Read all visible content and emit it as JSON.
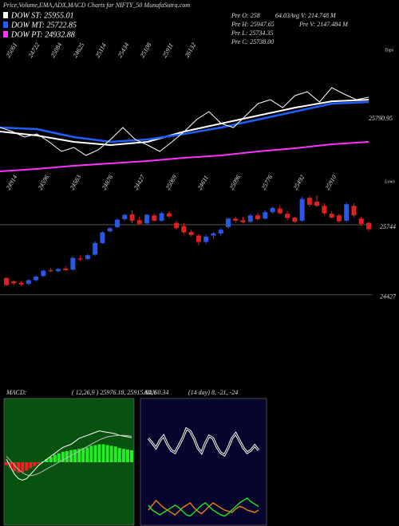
{
  "header": {
    "title": "Price,Volume,EMA,ADX,MACD Charts for NIFTY_50 MunafaSutra.com",
    "info": [
      "Pre O: 258",
      "Pre H: 25947.65",
      "Pre L: 25734.35",
      "Pre C: 25738.00",
      "64.03Avg V: 214.748 M",
      "Pre V: 2147.484 M"
    ]
  },
  "chart_data": [
    {
      "type": "line",
      "ylim": [
        23200,
        28900
      ],
      "color": "#ffffff",
      "values": [
        25479,
        25337,
        25137,
        25251,
        24966,
        24624,
        24767,
        24482,
        24681,
        25052,
        25479,
        25052,
        24852,
        24624,
        24966,
        25337,
        25764,
        26049,
        25622,
        25479,
        25907,
        26334,
        26476,
        26191,
        26619,
        26761,
        26391,
        26904,
        26676,
        26476,
        26562
      ],
      "series_x": [
        0,
        3,
        6,
        9,
        12,
        15,
        18,
        21,
        24,
        27,
        30
      ],
      "series": [
        {
          "name": "DOW ST: 25955.01",
          "color": "#ffffff",
          "values": [
            25337,
            25194,
            24966,
            24852,
            24966,
            25337,
            25622,
            25907,
            26191,
            26419,
            26476
          ]
        },
        {
          "name": "DOW MT: 25722.85",
          "color": "#1f5fff",
          "values": [
            25479,
            25422,
            25137,
            24966,
            25052,
            25251,
            25479,
            25764,
            26049,
            26334,
            26391
          ]
        },
        {
          "name": "DOW PT: 24932.88",
          "color": "#ff33ff",
          "values": [
            23912,
            23998,
            24112,
            24197,
            24283,
            24397,
            24482,
            24624,
            24738,
            24881,
            24966
          ]
        }
      ],
      "marker_value": 25790.95,
      "tops_label": "Tops",
      "lows_label": "Lows",
      "top_labels": [
        25061,
        24722,
        25084,
        24625,
        25114,
        25434,
        25108,
        25911,
        26132
      ],
      "low_labels": [
        24914,
        24596,
        24563,
        24876,
        24427,
        25069,
        24611,
        25096,
        25776,
        25492,
        25910
      ]
    },
    {
      "type": "candlestick",
      "ylim": [
        24394,
        26374
      ],
      "up_color": "#2a57e6",
      "down_color": "#e02020",
      "open": [
        24740,
        24680,
        24650,
        24630,
        24700,
        24780,
        24890,
        24870,
        24920,
        24900,
        25110,
        25100,
        25180,
        25400,
        25620,
        25700,
        25850,
        25940,
        25830,
        25770,
        25920,
        25820,
        25960,
        25780,
        25720,
        25610,
        25540,
        25420,
        25540,
        25580,
        25700,
        25860,
        25830,
        25800,
        25920,
        25860,
        25980,
        26050,
        25950,
        25880,
        25820,
        26250,
        26180,
        26100,
        25950,
        25920,
        25820,
        26100,
        25860,
        25780
      ],
      "high": [
        24760,
        24700,
        24690,
        24720,
        24790,
        24900,
        24930,
        24930,
        24960,
        25150,
        25160,
        25190,
        25430,
        25620,
        25700,
        25860,
        25950,
        26010,
        25900,
        25950,
        25960,
        25990,
        26000,
        25820,
        25780,
        25650,
        25570,
        25560,
        25610,
        25680,
        25880,
        25900,
        25890,
        25950,
        25970,
        26010,
        26090,
        26110,
        26000,
        25900,
        26270,
        26290,
        26300,
        26150,
        26000,
        25950,
        26160,
        26150,
        25900,
        25800
      ],
      "low": [
        24590,
        24600,
        24590,
        24610,
        24680,
        24760,
        24850,
        24850,
        24870,
        24880,
        25070,
        25080,
        25160,
        25380,
        25600,
        25680,
        25820,
        25780,
        25740,
        25750,
        25800,
        25800,
        25870,
        25650,
        25560,
        25520,
        25360,
        25380,
        25480,
        25540,
        25670,
        25780,
        25770,
        25780,
        25820,
        25840,
        25950,
        25940,
        25830,
        25780,
        25800,
        26080,
        26080,
        25920,
        25860,
        25780,
        25790,
        25880,
        25720,
        25620
      ],
      "close": [
        24610,
        24640,
        24620,
        24700,
        24770,
        24880,
        24870,
        24910,
        24890,
        25120,
        25090,
        25170,
        25400,
        25600,
        25680,
        25840,
        25930,
        25820,
        25760,
        25930,
        25820,
        25960,
        25900,
        25680,
        25600,
        25550,
        25420,
        25520,
        25580,
        25650,
        25860,
        25820,
        25790,
        25920,
        25850,
        25980,
        26060,
        25960,
        25870,
        25800,
        26230,
        26120,
        26100,
        25960,
        25880,
        25810,
        26130,
        25920,
        25760,
        25660
      ],
      "reference_lines": [
        25744,
        24427
      ]
    },
    {
      "type": "macd",
      "label": "MACD:",
      "params": "( 12,26,9 ) 25976.18, 25915.84, 60.34",
      "ylim": [
        -400,
        400
      ],
      "background": "#07520f",
      "pos_color": "#22ee22",
      "neg_color": "#ee2222",
      "histogram": [
        -20,
        -40,
        -60,
        -70,
        -65,
        -55,
        -40,
        -25,
        -10,
        5,
        20,
        35,
        50,
        60,
        70,
        75,
        80,
        85,
        90,
        95,
        100,
        110,
        115,
        120,
        120,
        115,
        110,
        105,
        95,
        90,
        85,
        80
      ],
      "lines": [
        {
          "color": "#ffffff",
          "values": [
            20,
            -30,
            -80,
            -110,
            -120,
            -110,
            -80,
            -50,
            -20,
            0,
            20,
            40,
            60,
            80,
            100,
            110,
            120,
            140,
            160,
            170,
            180,
            190,
            200,
            210,
            205,
            200,
            195,
            190,
            180,
            175,
            170,
            165
          ]
        },
        {
          "color": "#bbbbbb",
          "values": [
            40,
            10,
            -20,
            -50,
            -70,
            -85,
            -90,
            -85,
            -75,
            -60,
            -45,
            -30,
            -15,
            0,
            15,
            30,
            45,
            60,
            75,
            90,
            105,
            120,
            135,
            150,
            160,
            170,
            175,
            178,
            180,
            180,
            178,
            175
          ]
        }
      ]
    },
    {
      "type": "adx",
      "label": "ADX",
      "params": "(14 day) 8, -21, -24",
      "ylim": [
        0,
        100
      ],
      "background": "#05052e",
      "lines": [
        {
          "color": "#ffffff",
          "values": [
            70,
            66,
            62,
            68,
            72,
            65,
            60,
            58,
            64,
            70,
            78,
            76,
            70,
            62,
            58,
            66,
            72,
            70,
            63,
            58,
            56,
            62,
            70,
            74,
            68,
            62,
            58,
            60,
            64,
            60
          ]
        },
        {
          "color": "#e07a20",
          "values": [
            10,
            14,
            18,
            15,
            12,
            10,
            8,
            6,
            9,
            12,
            14,
            16,
            12,
            9,
            7,
            10,
            13,
            16,
            14,
            12,
            10,
            9,
            8,
            11,
            13,
            12,
            10,
            9,
            8,
            10
          ]
        },
        {
          "color": "#22dd22",
          "values": [
            14,
            10,
            8,
            6,
            8,
            10,
            12,
            14,
            12,
            9,
            6,
            5,
            8,
            11,
            14,
            16,
            13,
            10,
            8,
            6,
            5,
            7,
            10,
            13,
            16,
            18,
            20,
            17,
            15,
            13
          ]
        }
      ]
    }
  ]
}
